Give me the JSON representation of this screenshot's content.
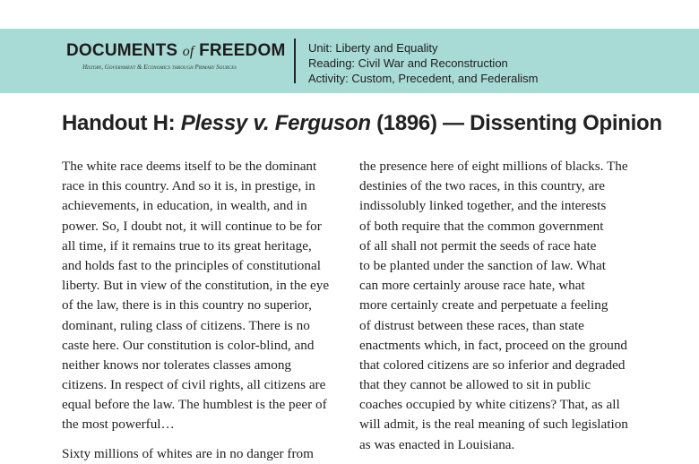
{
  "header": {
    "logo_main": "DOCUMENTS",
    "logo_of": "of",
    "logo_end": "FREEDOM",
    "tagline": "History, Government & Economics through Primary Sources",
    "unit": "Unit: Liberty and Equality",
    "reading": "Reading: Civil War and Reconstruction",
    "activity": "Activity: Custom, Precedent, and Federalism",
    "background_color": "#a9dbd6"
  },
  "title": {
    "prefix": "Handout H: ",
    "case": "Plessy v. Ferguson",
    "suffix": " (1896) — Dissenting Opinion"
  },
  "left_column": {
    "para1": [
      "The white race deems itself to be the dominant",
      "race in this country. And so it is, in prestige, in",
      "achievements, in education, in wealth, and in",
      "power. So, I doubt not, it will continue to be for",
      "all time, if it remains true to its great heritage,",
      "and holds fast to the principles of constitutional",
      "liberty. But in view of the constitution, in the eye",
      "of the law, there is in this country no superior,",
      "dominant, ruling class of citizens. There is no",
      "caste here. Our constitution is color-blind, and",
      "neither knows nor tolerates classes among",
      "citizens. In respect of civil rights, all citizens are",
      "equal before the law. The humblest is the peer of",
      "the most powerful…"
    ],
    "para2": [
      "Sixty millions of whites are in no danger from"
    ]
  },
  "right_column": [
    "the presence here of eight millions of blacks. The",
    "destinies of the two races, in this country, are",
    "indissolubly linked together, and the interests",
    "of both require that the common government",
    "of all shall not permit the seeds of race hate",
    "to be planted under the sanction of law. What",
    "can more certainly arouse race hate, what",
    "more certainly create and perpetuate a feeling",
    "of distrust between these races, than state",
    "enactments which, in fact, proceed on the ground",
    "that colored citizens are so inferior and degraded",
    "that they cannot be allowed to sit in public",
    "coaches occupied by white citizens? That, as all",
    "will admit, is the real meaning of such legislation",
    "as was enacted in Louisiana."
  ]
}
